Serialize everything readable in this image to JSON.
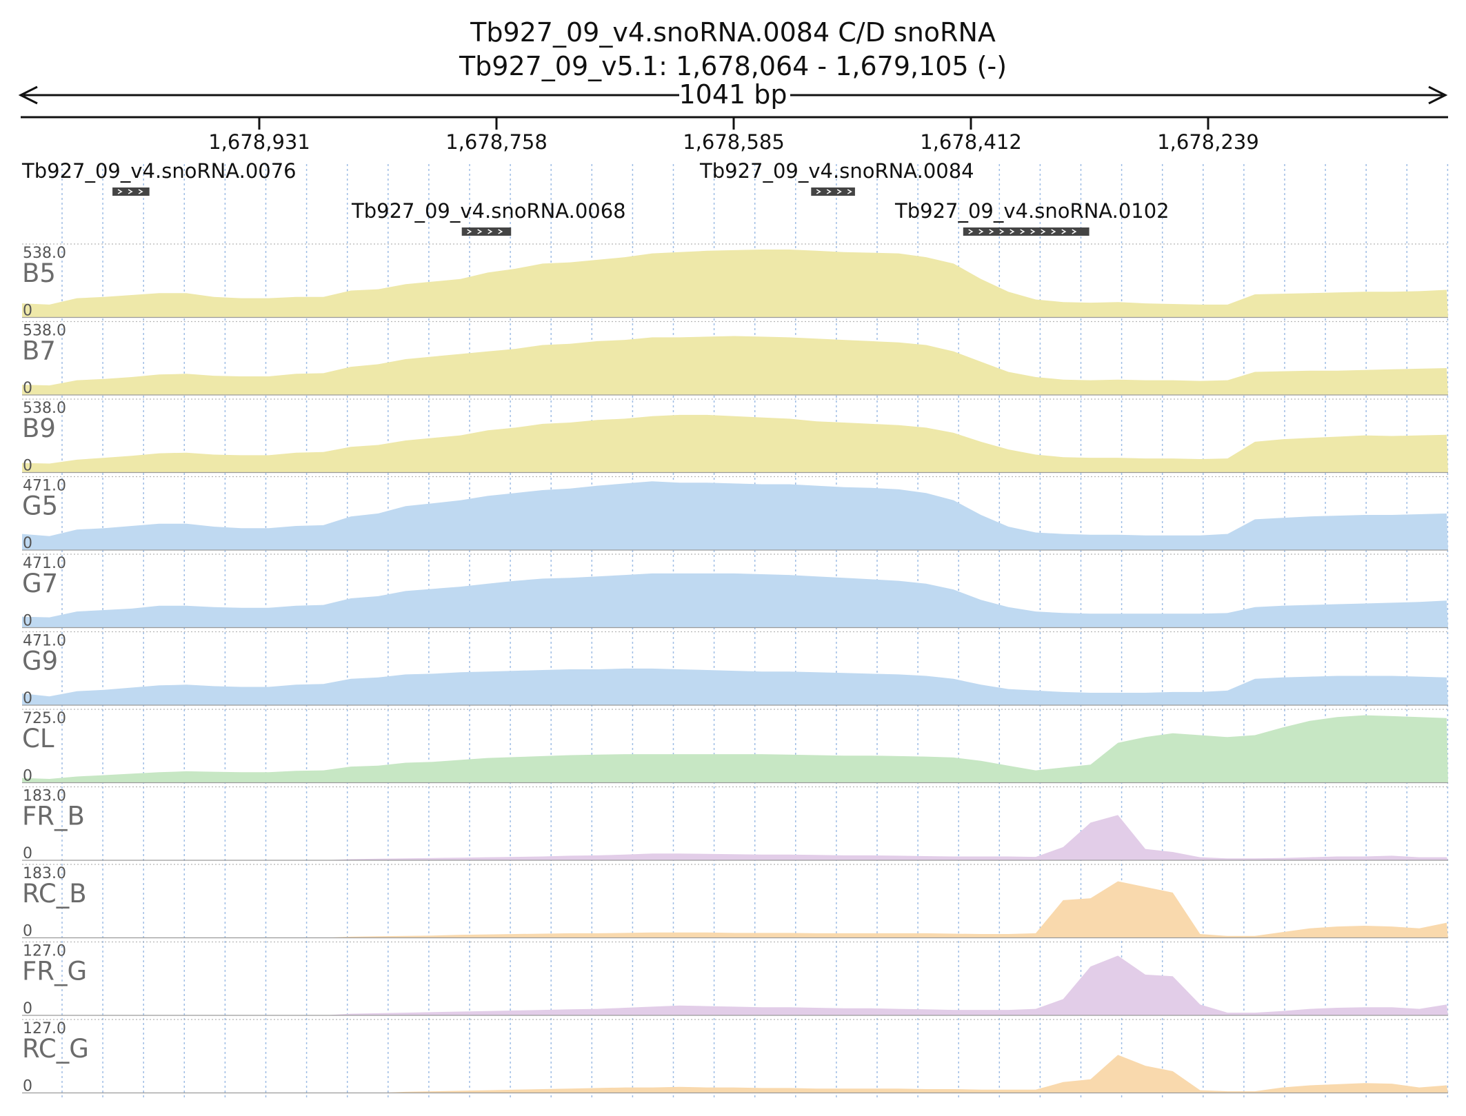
{
  "header": {
    "title": "Tb927_09_v4.snoRNA.0084  C/D snoRNA",
    "locus": "Tb927_09_v5.1: 1,678,064 - 1,679,105 (-)",
    "span_label": "1041 bp"
  },
  "ruler": {
    "ticks": [
      "1,678,931",
      "1,678,758",
      "1,678,585",
      "1,678,412",
      "1,678,239"
    ]
  },
  "genes": [
    {
      "name": "Tb927_09_v4.snoRNA.0076",
      "strand": "+",
      "start_bp": 66,
      "end_bp": 93
    },
    {
      "name": "Tb927_09_v4.snoRNA.0084",
      "strand": "+",
      "start_bp": 576,
      "end_bp": 608
    },
    {
      "name": "Tb927_09_v4.snoRNA.0068",
      "strand": "+",
      "start_bp": 321,
      "end_bp": 357
    },
    {
      "name": "Tb927_09_v4.snoRNA.0102",
      "strand": "+",
      "start_bp": 687,
      "end_bp": 779
    }
  ],
  "colors": {
    "yellow": "#eee8a9",
    "blue": "#bfd9f1",
    "green": "#c7e7c4",
    "purple": "#e2cde8",
    "orange": "#f9d9ad",
    "gene": "#444444",
    "grid": "#9dbce4"
  },
  "chart_data": {
    "type": "area",
    "x_unit": "bp from window start (1,679,105, minus strand)",
    "x_range": [
      0,
      1041
    ],
    "x": [
      0,
      20,
      40,
      60,
      80,
      100,
      120,
      140,
      160,
      180,
      200,
      220,
      240,
      260,
      280,
      300,
      320,
      340,
      360,
      380,
      400,
      420,
      440,
      460,
      480,
      500,
      520,
      540,
      560,
      580,
      600,
      620,
      640,
      660,
      680,
      700,
      720,
      740,
      760,
      780,
      800,
      820,
      840,
      860,
      880,
      900,
      920,
      940,
      960,
      980,
      1000,
      1020,
      1040
    ],
    "series": [
      {
        "name": "B5",
        "color_key": "yellow",
        "scale_max": 538.0,
        "values": [
          110,
          100,
          150,
          160,
          175,
          190,
          190,
          160,
          150,
          150,
          160,
          160,
          210,
          220,
          260,
          280,
          300,
          350,
          380,
          420,
          430,
          450,
          470,
          500,
          510,
          520,
          525,
          530,
          530,
          520,
          510,
          505,
          500,
          470,
          420,
          300,
          200,
          140,
          120,
          115,
          120,
          110,
          105,
          100,
          100,
          180,
          185,
          190,
          195,
          200,
          200,
          205,
          215
        ]
      },
      {
        "name": "B7",
        "color_key": "yellow",
        "scale_max": 538.0,
        "values": [
          80,
          75,
          115,
          125,
          140,
          160,
          165,
          150,
          145,
          145,
          165,
          170,
          220,
          240,
          280,
          300,
          320,
          340,
          360,
          390,
          400,
          420,
          430,
          450,
          450,
          455,
          460,
          455,
          450,
          440,
          430,
          420,
          410,
          390,
          340,
          260,
          180,
          140,
          120,
          115,
          120,
          115,
          115,
          110,
          115,
          180,
          185,
          190,
          190,
          195,
          200,
          205,
          210
        ]
      },
      {
        "name": "B9",
        "color_key": "yellow",
        "scale_max": 538.0,
        "values": [
          75,
          70,
          100,
          115,
          130,
          150,
          155,
          140,
          135,
          135,
          155,
          160,
          200,
          215,
          250,
          270,
          290,
          330,
          350,
          380,
          390,
          410,
          420,
          440,
          450,
          450,
          440,
          430,
          420,
          400,
          390,
          380,
          370,
          350,
          310,
          240,
          180,
          140,
          120,
          115,
          115,
          110,
          110,
          105,
          110,
          240,
          260,
          270,
          280,
          290,
          285,
          290,
          295
        ]
      },
      {
        "name": "G5",
        "color_key": "blue",
        "scale_max": 471.0,
        "values": [
          110,
          95,
          140,
          150,
          165,
          180,
          180,
          160,
          150,
          150,
          165,
          170,
          230,
          250,
          300,
          320,
          340,
          370,
          390,
          410,
          420,
          440,
          455,
          470,
          460,
          460,
          455,
          450,
          450,
          440,
          430,
          425,
          415,
          390,
          340,
          240,
          160,
          120,
          110,
          105,
          105,
          100,
          100,
          100,
          110,
          210,
          220,
          230,
          235,
          240,
          240,
          245,
          250
        ]
      },
      {
        "name": "G7",
        "color_key": "blue",
        "scale_max": 471.0,
        "values": [
          75,
          70,
          110,
          120,
          130,
          150,
          150,
          140,
          135,
          135,
          150,
          155,
          200,
          215,
          250,
          265,
          280,
          300,
          320,
          335,
          340,
          350,
          360,
          370,
          370,
          370,
          370,
          365,
          360,
          350,
          340,
          330,
          320,
          300,
          260,
          190,
          140,
          110,
          100,
          95,
          95,
          95,
          95,
          95,
          100,
          140,
          150,
          155,
          160,
          165,
          170,
          175,
          185
        ]
      },
      {
        "name": "G9",
        "color_key": "blue",
        "scale_max": 471.0,
        "values": [
          80,
          60,
          95,
          105,
          120,
          135,
          140,
          130,
          125,
          125,
          140,
          145,
          180,
          190,
          210,
          215,
          225,
          230,
          235,
          240,
          245,
          245,
          250,
          250,
          245,
          240,
          235,
          230,
          230,
          225,
          220,
          215,
          210,
          200,
          180,
          140,
          110,
          100,
          90,
          85,
          85,
          85,
          90,
          90,
          100,
          180,
          190,
          195,
          200,
          200,
          200,
          195,
          190
        ]
      },
      {
        "name": "CL",
        "color_key": "green",
        "scale_max": 725.0,
        "values": [
          50,
          40,
          65,
          80,
          95,
          110,
          120,
          115,
          110,
          110,
          125,
          130,
          170,
          180,
          210,
          220,
          240,
          260,
          270,
          280,
          290,
          295,
          300,
          300,
          300,
          300,
          300,
          300,
          295,
          290,
          285,
          285,
          280,
          275,
          265,
          230,
          180,
          130,
          160,
          190,
          420,
          480,
          520,
          500,
          480,
          500,
          580,
          650,
          690,
          710,
          700,
          690,
          680
        ]
      },
      {
        "name": "FR_B",
        "color_key": "purple",
        "scale_max": 183.0,
        "values": [
          0,
          0,
          0,
          0,
          0,
          0,
          0,
          0,
          0,
          0,
          0,
          0,
          3,
          4,
          5,
          6,
          7,
          8,
          9,
          10,
          12,
          13,
          15,
          18,
          18,
          17,
          16,
          15,
          15,
          14,
          13,
          13,
          12,
          11,
          10,
          10,
          10,
          9,
          35,
          100,
          120,
          30,
          22,
          8,
          5,
          5,
          6,
          8,
          10,
          10,
          12,
          8,
          8
        ]
      },
      {
        "name": "RC_B",
        "color_key": "orange",
        "scale_max": 183.0,
        "values": [
          0,
          0,
          0,
          0,
          0,
          0,
          0,
          0,
          0,
          0,
          0,
          0,
          3,
          4,
          5,
          6,
          8,
          9,
          10,
          11,
          12,
          12,
          13,
          14,
          14,
          14,
          13,
          13,
          13,
          12,
          12,
          12,
          12,
          12,
          11,
          10,
          10,
          12,
          100,
          105,
          150,
          135,
          120,
          10,
          5,
          5,
          15,
          25,
          30,
          32,
          30,
          25,
          40
        ]
      },
      {
        "name": "FR_G",
        "color_key": "purple",
        "scale_max": 127.0,
        "values": [
          0,
          0,
          0,
          0,
          0,
          0,
          0,
          0,
          0,
          0,
          0,
          0,
          3,
          4,
          5,
          6,
          7,
          8,
          9,
          10,
          11,
          12,
          14,
          16,
          18,
          17,
          16,
          15,
          15,
          14,
          13,
          13,
          12,
          11,
          10,
          10,
          10,
          12,
          30,
          90,
          110,
          75,
          72,
          20,
          5,
          5,
          8,
          12,
          14,
          15,
          15,
          12,
          20
        ]
      },
      {
        "name": "RC_G",
        "color_key": "orange",
        "scale_max": 127.0,
        "values": [
          0,
          0,
          0,
          0,
          0,
          0,
          0,
          0,
          0,
          0,
          0,
          0,
          0,
          0,
          2,
          3,
          4,
          5,
          6,
          7,
          8,
          9,
          10,
          10,
          11,
          10,
          10,
          9,
          9,
          8,
          8,
          8,
          8,
          7,
          7,
          6,
          6,
          6,
          20,
          25,
          70,
          50,
          40,
          5,
          3,
          3,
          10,
          14,
          16,
          18,
          17,
          10,
          14
        ]
      }
    ]
  }
}
